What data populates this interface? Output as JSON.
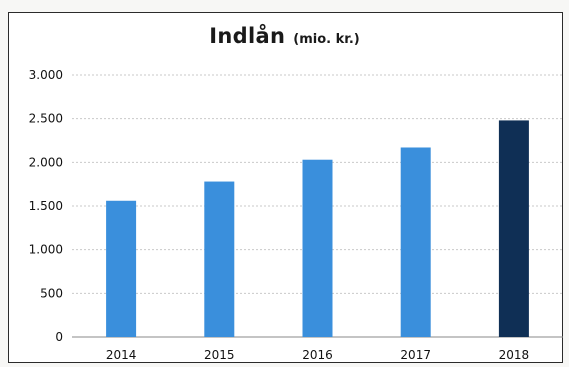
{
  "chart_data": {
    "type": "bar",
    "title": "Indlån",
    "subtitle": "(mio. kr.)",
    "categories": [
      "2014",
      "2015",
      "2016",
      "2017",
      "2018"
    ],
    "values": [
      1560,
      1780,
      2030,
      2170,
      2480
    ],
    "colors": [
      "#3a8fdc",
      "#3a8fdc",
      "#3a8fdc",
      "#3a8fdc",
      "#0f2f55"
    ],
    "ylim": [
      0,
      3000
    ],
    "yticks": [
      0,
      500,
      1000,
      1500,
      2000,
      2500,
      3000
    ],
    "ytick_labels": [
      "0",
      "500",
      "1.000",
      "1.500",
      "2.000",
      "2.500",
      "3.000"
    ],
    "xlabel": "",
    "ylabel": "",
    "grid": true
  }
}
